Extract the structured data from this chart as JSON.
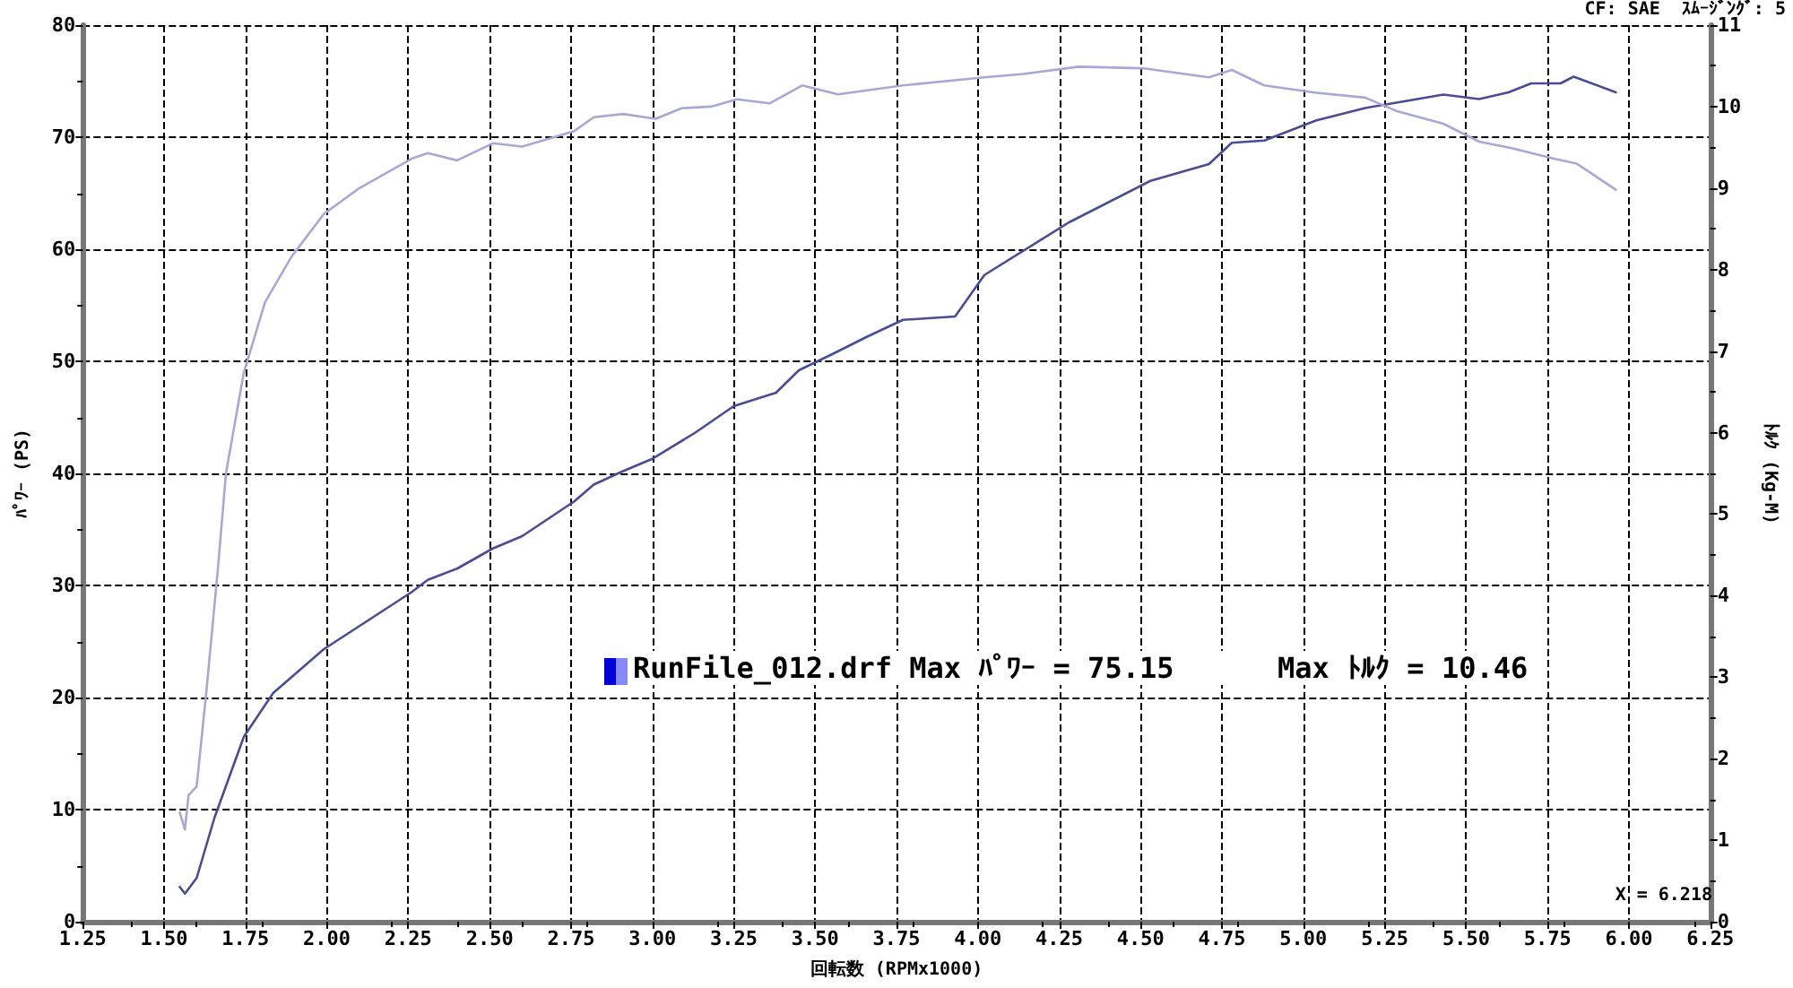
{
  "chart_data": {
    "type": "line",
    "xlabel": "回転数 (RPMx1000)",
    "ylabel": "ﾊﾟﾜｰ (PS)",
    "y2label": "ﾄﾙｸ (Kg-M)",
    "annotations": [
      "CF: SAE  ｽﾑｰｼﾞﾝｸﾞ: 5",
      "RunFile_012.drf Max ﾊﾟﾜｰ = 75.15      Max ﾄﾙｸ = 10.46",
      "X = 6.218"
    ],
    "xlim": [
      1.25,
      6.25
    ],
    "xticks": [
      1.25,
      {
        "value": 1.5,
        "label": "1.50"
      },
      1.75,
      {
        "value": 2,
        "label": "2.00"
      },
      2.25,
      {
        "value": 2.5,
        "label": "2.50"
      },
      2.75,
      {
        "value": 3,
        "label": "3.00"
      },
      3.25,
      {
        "value": 3.5,
        "label": "3.50"
      },
      3.75,
      {
        "value": 4,
        "label": "4.00"
      },
      4.25,
      {
        "value": 4.5,
        "label": "4.50"
      },
      4.75,
      {
        "value": 5,
        "label": "5.00"
      },
      5.25,
      {
        "value": 5.5,
        "label": "5.50"
      },
      5.75,
      {
        "value": 6,
        "label": "6.00"
      },
      6.25
    ],
    "ylim": [
      0,
      80
    ],
    "yticks": [
      0,
      10,
      20,
      30,
      40,
      50,
      60,
      70,
      80
    ],
    "y2lim": [
      0,
      11
    ],
    "y2ticks": [
      0,
      1,
      2,
      3,
      4,
      5,
      6,
      7,
      8,
      9,
      10,
      11
    ],
    "grid": true,
    "marker": "none",
    "line_style": "solid",
    "series": [
      {
        "color": "#4b4b96",
        "x": [
          1.548,
          1.564,
          1.6,
          1.655,
          1.745,
          1.835,
          1.99,
          2.26,
          2.31,
          2.4,
          2.51,
          2.6,
          2.76,
          2.82,
          2.91,
          3.0,
          3.13,
          3.25,
          3.38,
          3.45,
          3.55,
          3.66,
          3.77,
          3.93,
          4.02,
          4.28,
          4.53,
          4.71,
          4.78,
          4.88,
          5.04,
          5.19,
          5.29,
          5.43,
          5.54,
          5.63,
          5.7,
          5.79,
          5.83,
          5.96
        ],
        "values": [
          3.1,
          2.5,
          3.9,
          9.3,
          16.5,
          20.4,
          24.3,
          29.4,
          30.5,
          31.5,
          33.3,
          34.4,
          37.5,
          39,
          40.2,
          41.3,
          43.6,
          46,
          47.2,
          49.2,
          50.6,
          52.2,
          53.7,
          54,
          57.7,
          62.4,
          66.1,
          67.6,
          69.5,
          69.7,
          71.5,
          72.6,
          73.1,
          73.8,
          73.4,
          74,
          74.8,
          74.8,
          75.4,
          74
        ]
      },
      {
        "color": "#a8a8d6",
        "axis": "y2",
        "x": [
          1.548,
          1.564,
          1.575,
          1.6,
          1.63,
          1.665,
          1.69,
          1.745,
          1.81,
          1.89,
          1.99,
          2.1,
          2.26,
          2.31,
          2.4,
          2.51,
          2.6,
          2.76,
          2.82,
          2.91,
          3.01,
          3.09,
          3.18,
          3.26,
          3.36,
          3.46,
          3.57,
          3.77,
          4.02,
          4.14,
          4.31,
          4.51,
          4.71,
          4.78,
          4.88,
          5.04,
          5.19,
          5.29,
          5.43,
          5.54,
          5.64,
          5.77,
          5.84,
          5.96
        ],
        "values": [
          1.34,
          1.13,
          1.55,
          1.66,
          2.83,
          4.32,
          5.5,
          6.74,
          7.6,
          8.15,
          8.68,
          9.0,
          9.36,
          9.43,
          9.34,
          9.55,
          9.51,
          9.7,
          9.87,
          9.91,
          9.85,
          9.98,
          10.0,
          10.09,
          10.04,
          10.26,
          10.15,
          10.26,
          10.36,
          10.4,
          10.49,
          10.47,
          10.36,
          10.45,
          10.26,
          10.17,
          10.11,
          9.94,
          9.79,
          9.57,
          9.49,
          9.36,
          9.3,
          8.98
        ]
      }
    ]
  }
}
